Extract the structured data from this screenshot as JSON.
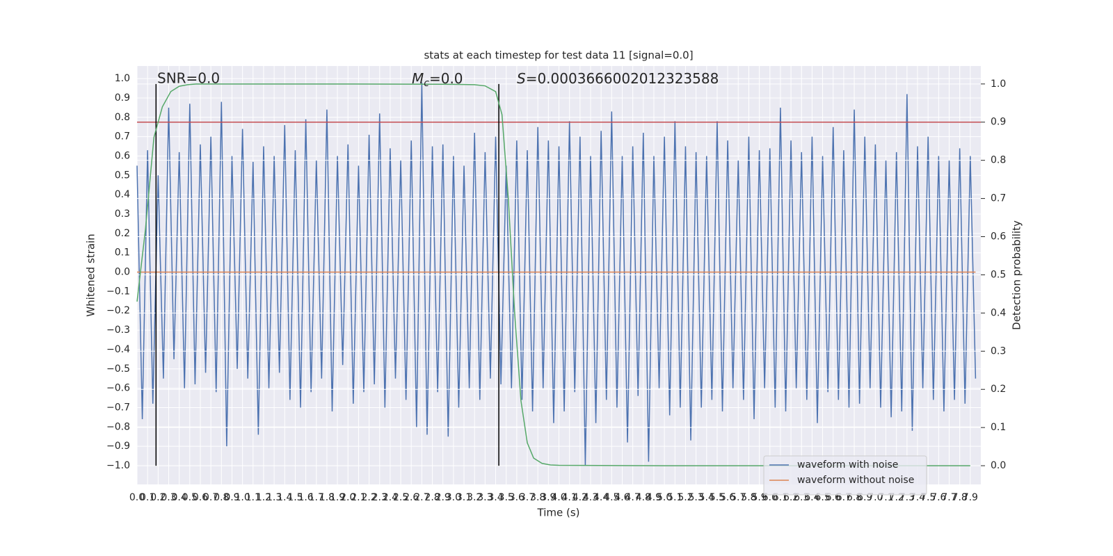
{
  "chart_data": {
    "type": "line",
    "title": "stats at each timestep for test data 11 [signal=0.0]",
    "xlabel": "Time (s)",
    "ylabel": "Whitened strain",
    "y2label": "Detection probability",
    "xlim": [
      0,
      8.0
    ],
    "ylim": [
      -1.097,
      1.065
    ],
    "y2lim": [
      -0.049,
      1.047
    ],
    "grid": true,
    "legend": "lower right",
    "xticks": [
      {
        "value": 0,
        "label": "0.0"
      },
      0.1,
      0.2,
      0.3,
      0.4,
      0.5,
      0.6,
      0.7,
      0.8,
      0.9,
      {
        "value": 1,
        "label": "1.0"
      },
      1.1,
      1.2,
      1.3,
      1.4,
      1.5,
      1.6,
      1.7,
      1.8,
      1.9,
      {
        "value": 2,
        "label": "2.0"
      },
      2.1,
      2.2,
      2.3,
      2.4,
      2.5,
      2.6,
      2.7,
      2.8,
      2.9,
      {
        "value": 3,
        "label": "3.0"
      },
      3.1,
      3.2,
      3.3,
      3.4,
      3.5,
      3.6,
      3.7,
      3.8,
      3.9,
      {
        "value": 4,
        "label": "4.0"
      },
      4.1,
      4.2,
      4.3,
      4.4,
      4.5,
      4.6,
      4.7,
      4.8,
      4.9,
      {
        "value": 5,
        "label": "5.0"
      },
      5.1,
      5.2,
      5.3,
      5.4,
      5.5,
      5.6,
      5.7,
      5.8,
      5.9,
      {
        "value": 6,
        "label": "6.0"
      },
      6.1,
      6.2,
      6.3,
      6.4,
      6.5,
      6.6,
      6.7,
      6.8,
      6.9,
      {
        "value": 7,
        "label": "7.0"
      },
      7.1,
      7.2,
      7.3,
      7.4,
      7.5,
      7.6,
      7.7,
      7.8,
      7.9
    ],
    "yticks": [
      {
        "value": -1,
        "label": "−1.0"
      },
      {
        "value": -0.9,
        "label": "−0.9"
      },
      {
        "value": -0.8,
        "label": "−0.8"
      },
      {
        "value": -0.7,
        "label": "−0.7"
      },
      {
        "value": -0.6,
        "label": "−0.6"
      },
      {
        "value": -0.5,
        "label": "−0.5"
      },
      {
        "value": -0.4,
        "label": "−0.4"
      },
      {
        "value": -0.3,
        "label": "−0.3"
      },
      {
        "value": -0.2,
        "label": "−0.2"
      },
      {
        "value": -0.1,
        "label": "−0.1"
      },
      {
        "value": 0,
        "label": "0.0"
      },
      0.1,
      0.2,
      0.3,
      0.4,
      0.5,
      0.6,
      0.7,
      0.8,
      0.9,
      {
        "value": 1,
        "label": "1.0"
      }
    ],
    "y2ticks": [
      {
        "value": 0,
        "label": "0.0"
      },
      0.1,
      0.2,
      0.3,
      0.4,
      0.5,
      0.6,
      0.7,
      0.8,
      0.9,
      {
        "value": 1,
        "label": "1.0"
      }
    ],
    "series": [
      {
        "name": "waveform with noise",
        "color": "#4c72b0",
        "x": [
          0,
          0.05,
          0.1,
          0.15,
          0.2,
          0.25,
          0.3,
          0.35,
          0.4,
          0.45,
          0.5,
          0.55,
          0.6,
          0.65,
          0.7,
          0.75,
          0.8,
          0.85,
          0.9,
          0.95,
          1,
          1.05,
          1.1,
          1.15,
          1.2,
          1.25,
          1.3,
          1.35,
          1.4,
          1.45,
          1.5,
          1.55,
          1.6,
          1.65,
          1.7,
          1.75,
          1.8,
          1.85,
          1.9,
          1.95,
          2,
          2.05,
          2.1,
          2.15,
          2.2,
          2.25,
          2.3,
          2.35,
          2.4,
          2.45,
          2.5,
          2.55,
          2.6,
          2.65,
          2.7,
          2.75,
          2.8,
          2.85,
          2.9,
          2.95,
          3,
          3.05,
          3.1,
          3.15,
          3.2,
          3.25,
          3.3,
          3.35,
          3.4,
          3.45,
          3.5,
          3.55,
          3.6,
          3.65,
          3.7,
          3.75,
          3.8,
          3.85,
          3.9,
          3.95,
          4,
          4.05,
          4.1,
          4.15,
          4.2,
          4.25,
          4.3,
          4.35,
          4.4,
          4.45,
          4.5,
          4.55,
          4.6,
          4.65,
          4.7,
          4.75,
          4.8,
          4.85,
          4.9,
          4.95,
          5,
          5.05,
          5.1,
          5.15,
          5.2,
          5.25,
          5.3,
          5.35,
          5.4,
          5.45,
          5.5,
          5.55,
          5.6,
          5.65,
          5.7,
          5.75,
          5.8,
          5.85,
          5.9,
          5.95,
          6,
          6.05,
          6.1,
          6.15,
          6.2,
          6.25,
          6.3,
          6.35,
          6.4,
          6.45,
          6.5,
          6.55,
          6.6,
          6.65,
          6.7,
          6.75,
          6.8,
          6.85,
          6.9,
          6.95,
          7,
          7.05,
          7.1,
          7.15,
          7.2,
          7.25,
          7.3,
          7.35,
          7.4,
          7.45,
          7.5,
          7.55,
          7.6,
          7.65,
          7.7,
          7.75,
          7.8,
          7.85,
          7.9,
          7.95
        ],
        "values": [
          0.55,
          -0.76,
          0.63,
          -0.68,
          0.5,
          -0.55,
          0.85,
          -0.45,
          0.62,
          -0.6,
          0.87,
          -0.58,
          0.66,
          -0.52,
          0.7,
          -0.62,
          0.88,
          -0.9,
          0.6,
          -0.5,
          0.74,
          -0.55,
          0.57,
          -0.84,
          0.65,
          -0.6,
          0.6,
          -0.52,
          0.76,
          -0.66,
          0.63,
          -0.7,
          0.79,
          -0.62,
          0.58,
          -0.55,
          0.84,
          -0.72,
          0.6,
          -0.48,
          0.66,
          -0.68,
          0.55,
          -0.62,
          0.71,
          -0.58,
          0.82,
          -0.7,
          0.64,
          -0.55,
          0.58,
          -0.66,
          0.68,
          -0.8,
          0.98,
          -0.84,
          0.65,
          -0.62,
          0.66,
          -0.85,
          0.6,
          -0.7,
          0.55,
          -0.6,
          0.72,
          -0.66,
          0.62,
          -0.55,
          0.7,
          -0.58,
          0.55,
          -0.6,
          0.68,
          -0.66,
          0.63,
          -0.72,
          0.75,
          -0.6,
          0.68,
          -0.78,
          0.65,
          -0.72,
          0.78,
          -0.62,
          0.7,
          -1.0,
          0.6,
          -0.78,
          0.73,
          -0.66,
          0.83,
          -0.7,
          0.6,
          -0.88,
          0.65,
          -0.64,
          0.72,
          -0.98,
          0.6,
          -0.6,
          0.7,
          -0.74,
          0.78,
          -0.7,
          0.65,
          -0.87,
          0.62,
          -0.7,
          0.6,
          -0.66,
          0.78,
          -0.72,
          0.68,
          -0.6,
          0.58,
          -0.66,
          0.7,
          -0.76,
          0.63,
          -0.6,
          0.64,
          -0.7,
          0.85,
          -0.72,
          0.68,
          -0.6,
          0.62,
          -0.66,
          0.7,
          -0.78,
          0.6,
          -0.62,
          0.75,
          -0.66,
          0.63,
          -0.7,
          0.84,
          -0.68,
          0.7,
          -0.6,
          0.66,
          -0.7,
          0.58,
          -0.75,
          0.62,
          -0.72,
          0.92,
          -0.82,
          0.65,
          -0.6,
          0.7,
          -0.66,
          0.6,
          -0.72,
          0.58,
          -0.66,
          0.64,
          -0.68,
          0.6,
          -0.55
        ]
      },
      {
        "name": "waveform without noise",
        "color": "#dd8452",
        "x": [
          0,
          7.95
        ],
        "values": [
          0,
          0
        ]
      },
      {
        "color": "#55a868",
        "axis": "y2",
        "x": [
          0,
          0.08,
          0.16,
          0.24,
          0.32,
          0.4,
          0.48,
          0.56,
          1,
          2,
          3,
          3.2,
          3.3,
          3.4,
          3.46,
          3.52,
          3.58,
          3.64,
          3.7,
          3.76,
          3.84,
          3.92,
          4,
          5,
          6,
          7,
          7.9
        ],
        "values": [
          0.43,
          0.62,
          0.86,
          0.94,
          0.98,
          0.994,
          0.998,
          1,
          1,
          1,
          0.999,
          0.998,
          0.995,
          0.98,
          0.92,
          0.7,
          0.4,
          0.17,
          0.06,
          0.02,
          0.006,
          0.002,
          0.001,
          0,
          0,
          0,
          0
        ]
      }
    ],
    "hlines": [
      {
        "y": 0.9,
        "axis": "y2",
        "color": "#c44e52"
      }
    ],
    "vlines": [
      {
        "x": 0.18,
        "ymin": 0,
        "ymax": 1,
        "axis": "y2",
        "color": "#000000"
      },
      {
        "x": 3.43,
        "ymin": 0,
        "ymax": 1,
        "axis": "y2",
        "color": "#000000"
      }
    ],
    "annotations": [
      {
        "text": "SNR=0.0"
      },
      {
        "symbol": "M",
        "subscript": "c",
        "text": "=0.0"
      },
      {
        "symbol": "S",
        "text": "=0.0003666002012323588"
      }
    ]
  }
}
